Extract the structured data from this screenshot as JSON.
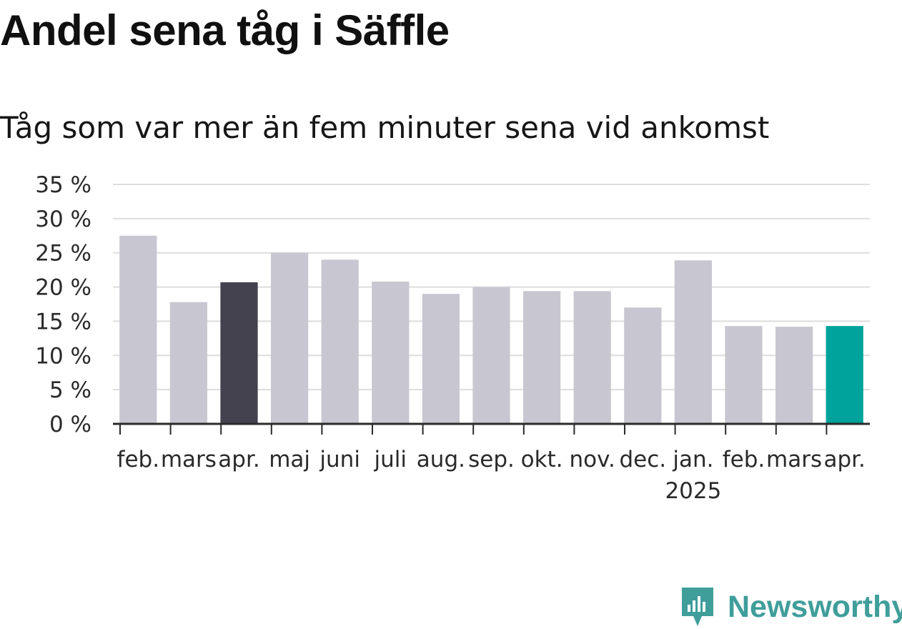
{
  "title": "Andel sena tåg i Säffle",
  "subtitle": "Tåg som var mer än fem minuter sena vid ankomst",
  "brand": {
    "name": "Newsworthy",
    "icon": "newsworthy-logo-icon",
    "color": "#3f9e9a"
  },
  "colors": {
    "default_bar": "#c8c7d1",
    "highlight_previous_year": "#44424f",
    "highlight_latest": "#00a39b",
    "grid": "#dddddd",
    "axis": "#2a2a2a"
  },
  "chart_data": {
    "type": "bar",
    "categories": [
      "feb.",
      "mars",
      "apr.",
      "maj",
      "juni",
      "juli",
      "aug.",
      "sep.",
      "okt.",
      "nov.",
      "dec.",
      "jan.",
      "feb.",
      "mars",
      "apr."
    ],
    "year_labels": [
      {
        "at_index": 11,
        "label": "2025"
      }
    ],
    "values": [
      27.5,
      17.8,
      20.7,
      25.0,
      24.0,
      20.8,
      19.0,
      20.0,
      19.4,
      19.4,
      17.0,
      23.9,
      14.3,
      14.2,
      14.3
    ],
    "highlight": {
      "2": "highlight_previous_year",
      "14": "highlight_latest"
    },
    "y_ticks": [
      0,
      5,
      10,
      15,
      20,
      25,
      30,
      35
    ],
    "y_tick_suffix": " %",
    "ylim": [
      0,
      35
    ],
    "grid": true,
    "legend": "none"
  }
}
